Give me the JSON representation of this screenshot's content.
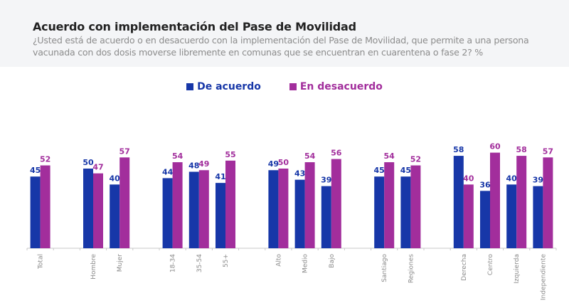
{
  "header": {
    "title": "Acuerdo con implementación del Pase de Movilidad",
    "subtitle": "¿Usted está de acuerdo o en desacuerdo con la implementación del Pase de Movilidad, que permite a una persona vacunada con dos dosis moverse libremente en comunas que se encuentran en cuarentena o fase 2? %"
  },
  "colors": {
    "de_acuerdo": "#1737a8",
    "en_desacuerdo": "#a22e9c",
    "axis": "#c8c8c8"
  },
  "chart_data": {
    "type": "bar",
    "title": "Acuerdo con implementación del Pase de Movilidad",
    "subtitle": "¿Usted está de acuerdo o en desacuerdo con la implementación del Pase de Movilidad, que permite a una persona vacunada con dos dosis moverse libremente en comunas que se encuentran en cuarentena o fase 2? %",
    "xlabel": "",
    "ylabel": "%",
    "ylim": [
      0,
      60
    ],
    "grid": false,
    "legend_position": "top-center",
    "categories": [
      "Total",
      "",
      "Hombre",
      "Mujer",
      "",
      "18-34",
      "35-54",
      "55+",
      "",
      "Alto",
      "Medio",
      "Bajo",
      "",
      "Santiago",
      "Regiones",
      "",
      "Derecha",
      "Centro",
      "Izquierda",
      "Independiente"
    ],
    "series": [
      {
        "name": "De acuerdo",
        "values": [
          45,
          null,
          50,
          40,
          null,
          44,
          48,
          41,
          null,
          49,
          43,
          39,
          null,
          45,
          45,
          null,
          58,
          36,
          40,
          39
        ]
      },
      {
        "name": "En desacuerdo",
        "values": [
          52,
          null,
          47,
          57,
          null,
          54,
          49,
          55,
          null,
          50,
          54,
          56,
          null,
          54,
          52,
          null,
          40,
          60,
          58,
          57
        ]
      }
    ]
  }
}
